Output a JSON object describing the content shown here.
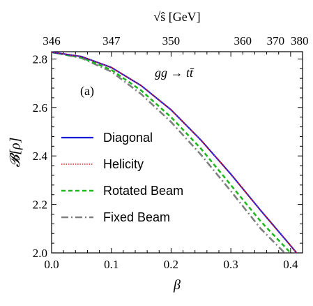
{
  "chart_data": {
    "type": "line",
    "xlabel": "β",
    "ylabel": "𝓑[ρ]",
    "top_axis_label": "√ŝ [GeV]",
    "xlim": [
      0.0,
      0.42
    ],
    "ylim": [
      2.0,
      2.83
    ],
    "x_ticks": [
      0.0,
      0.1,
      0.2,
      0.3,
      0.4
    ],
    "x_tick_labels": [
      "0.0",
      "0.1",
      "0.2",
      "0.3",
      "0.4"
    ],
    "y_ticks": [
      2.0,
      2.2,
      2.4,
      2.6,
      2.8
    ],
    "y_tick_labels": [
      "2.0",
      "2.2",
      "2.4",
      "2.6",
      "2.8"
    ],
    "top_ticks": [
      {
        "label": "346",
        "beta": 0.0
      },
      {
        "label": "347",
        "beta": 0.1
      },
      {
        "label": "350",
        "beta": 0.2
      },
      {
        "label": "360",
        "beta": 0.32
      },
      {
        "label": "370",
        "beta": 0.375
      },
      {
        "label": "380",
        "beta": 0.415
      }
    ],
    "annotations": {
      "process": "gg → tt̄",
      "panel": "(a)"
    },
    "legend_position": "left",
    "grid": false,
    "series": [
      {
        "name": "Diagonal",
        "color": "#1a1ad6",
        "style": "solid",
        "x": [
          0.0,
          0.05,
          0.1,
          0.15,
          0.2,
          0.25,
          0.3,
          0.35,
          0.4,
          0.41
        ],
        "y": [
          2.828,
          2.81,
          2.765,
          2.69,
          2.59,
          2.465,
          2.325,
          2.175,
          2.03,
          2.0
        ]
      },
      {
        "name": "Helicity",
        "color": "#e02020",
        "style": "dotted",
        "x": [
          0.0,
          0.05,
          0.1,
          0.15,
          0.2,
          0.25,
          0.3,
          0.35,
          0.4,
          0.41
        ],
        "y": [
          2.828,
          2.81,
          2.765,
          2.69,
          2.59,
          2.465,
          2.325,
          2.175,
          2.03,
          2.0
        ]
      },
      {
        "name": "Rotated Beam",
        "color": "#1fb81f",
        "style": "dashed",
        "x": [
          0.0,
          0.05,
          0.1,
          0.15,
          0.2,
          0.25,
          0.3,
          0.35,
          0.4
        ],
        "y": [
          2.828,
          2.806,
          2.755,
          2.67,
          2.56,
          2.43,
          2.28,
          2.13,
          2.0
        ]
      },
      {
        "name": "Fixed Beam",
        "color": "#808080",
        "style": "dashdot",
        "x": [
          0.0,
          0.05,
          0.1,
          0.15,
          0.2,
          0.25,
          0.3,
          0.35,
          0.39
        ],
        "y": [
          2.828,
          2.804,
          2.748,
          2.655,
          2.54,
          2.405,
          2.255,
          2.1,
          2.0
        ]
      }
    ]
  }
}
